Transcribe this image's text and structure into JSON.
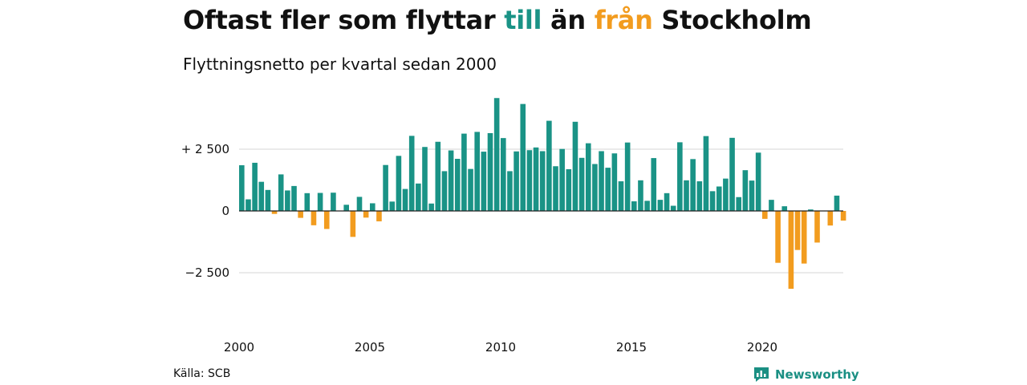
{
  "title": {
    "part1": "Oftast fler som flyttar ",
    "till": "till",
    "part2": " än ",
    "fran": "från",
    "part3": " Stockholm"
  },
  "subtitle": "Flyttningsnetto per kvartal sedan 2000",
  "source": "Källa: SCB",
  "brand": {
    "name": "Newsworthy",
    "icon": "newsworthy-logo-icon"
  },
  "colors": {
    "positive": "#1a9386",
    "negative": "#f29c1f",
    "grid": "#d6d6d6",
    "zero": "#222222",
    "brand": "#1a8f83"
  },
  "chart_data": {
    "type": "bar",
    "title": "Oftast fler som flyttar till än från Stockholm",
    "subtitle": "Flyttningsnetto per kvartal sedan 2000",
    "xlabel": "",
    "ylabel": "",
    "start": "2000Q1",
    "xticks": [
      {
        "label": "2000",
        "year": 2000
      },
      {
        "label": "2005",
        "year": 2005
      },
      {
        "label": "2010",
        "year": 2010
      },
      {
        "label": "2015",
        "year": 2015
      },
      {
        "label": "2020",
        "year": 2020
      }
    ],
    "yticks": [
      {
        "label": "+ 2 500",
        "value": 2500
      },
      {
        "label": "0",
        "value": 0
      },
      {
        "label": "−2 500",
        "value": -2500
      }
    ],
    "ylim": [
      -4500,
      4800
    ],
    "grid": true,
    "legend": "none",
    "values": [
      1850,
      470,
      1950,
      1180,
      850,
      -120,
      1480,
      830,
      1010,
      -280,
      720,
      -580,
      730,
      -730,
      740,
      0,
      250,
      -1050,
      570,
      -270,
      310,
      -420,
      1860,
      380,
      2230,
      890,
      3040,
      1110,
      2590,
      300,
      2800,
      1610,
      2450,
      2110,
      3130,
      1700,
      3200,
      2400,
      3150,
      4570,
      2950,
      1610,
      2410,
      4330,
      2460,
      2570,
      2420,
      3650,
      1810,
      2510,
      1690,
      3610,
      2150,
      2740,
      1900,
      2420,
      1750,
      2330,
      1200,
      2770,
      390,
      1240,
      410,
      2140,
      450,
      720,
      210,
      2780,
      1240,
      2100,
      1200,
      3030,
      800,
      990,
      1310,
      2960,
      560,
      1650,
      1230,
      2360,
      -320,
      450,
      -2100,
      190,
      -3150,
      -1580,
      -2130,
      60,
      -1280,
      0,
      -590,
      620,
      -390
    ]
  }
}
